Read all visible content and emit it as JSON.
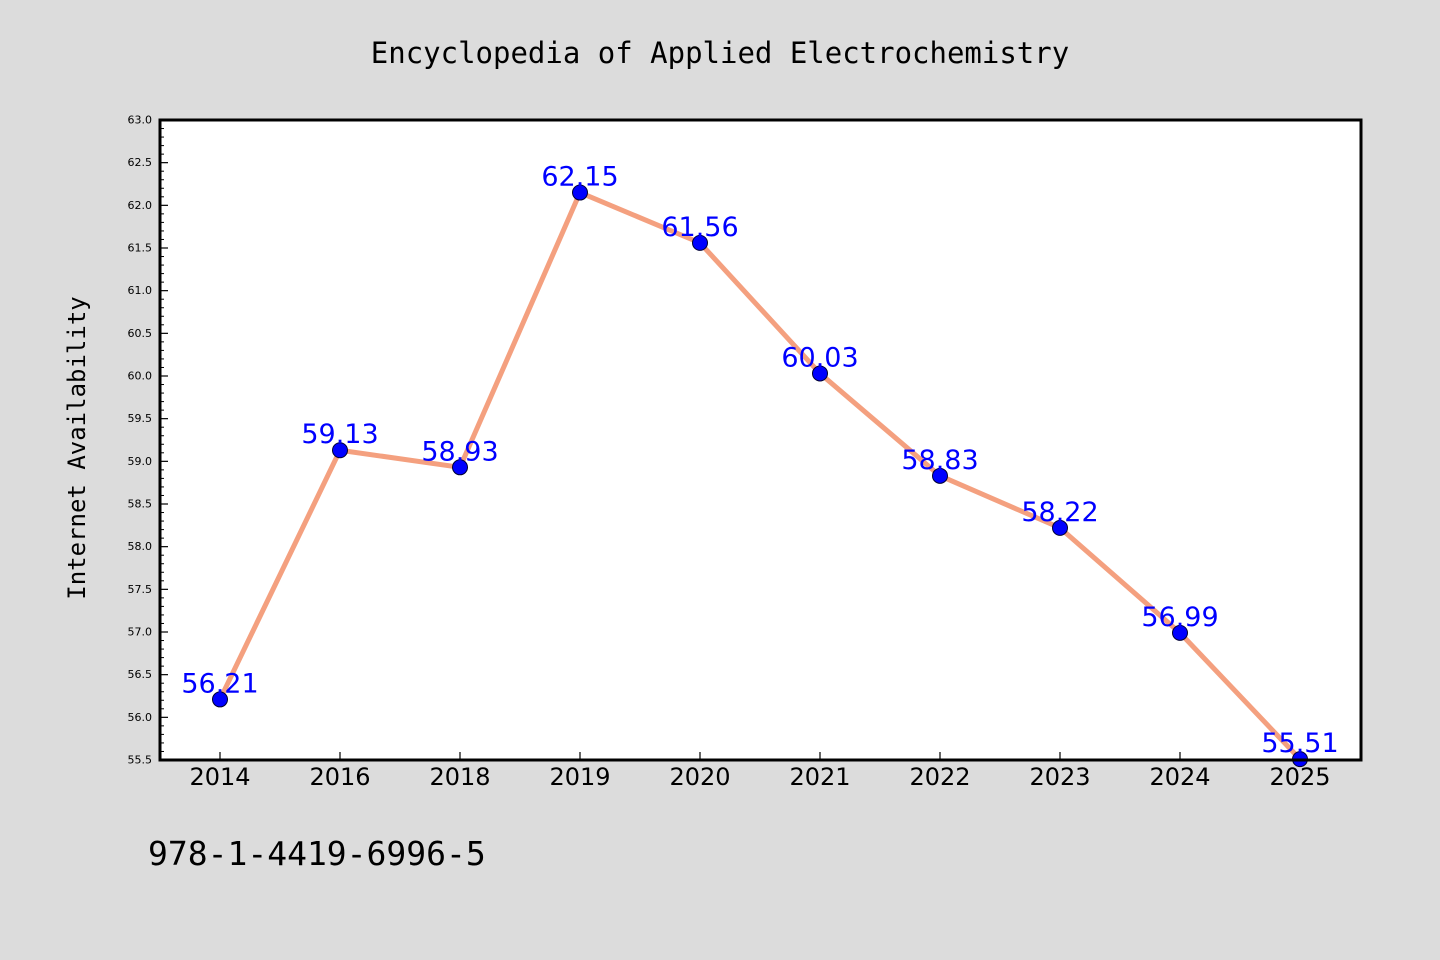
{
  "chart_data": {
    "type": "line",
    "title": "Encyclopedia of Applied Electrochemistry",
    "xlabel": "",
    "ylabel": "Internet Availability",
    "categories": [
      "2014",
      "2016",
      "2018",
      "2019",
      "2020",
      "2021",
      "2022",
      "2023",
      "2024",
      "2025"
    ],
    "values": [
      56.21,
      59.13,
      58.93,
      62.15,
      61.56,
      60.03,
      58.83,
      58.22,
      56.99,
      55.51
    ],
    "data_labels": [
      "56.21",
      "59.13",
      "58.93",
      "62.15",
      "61.56",
      "60.03",
      "58.83",
      "58.22",
      "56.99",
      "55.51"
    ],
    "ylim": [
      55.5,
      63.0
    ],
    "yticks": [
      "55.5",
      "56.0",
      "56.5",
      "57.0",
      "57.5",
      "58.0",
      "58.5",
      "59.0",
      "59.5",
      "60.0",
      "60.5",
      "61.0",
      "61.5",
      "62.0",
      "62.5",
      "63.0"
    ],
    "grid": false,
    "legend": "none",
    "colors": {
      "line": "#f4a07f",
      "marker": "#0000ff",
      "data_label": "#0000ff",
      "background": "#dcdcdc",
      "plot_background": "#ffffff"
    }
  },
  "footer_text": "978-1-4419-6996-5"
}
